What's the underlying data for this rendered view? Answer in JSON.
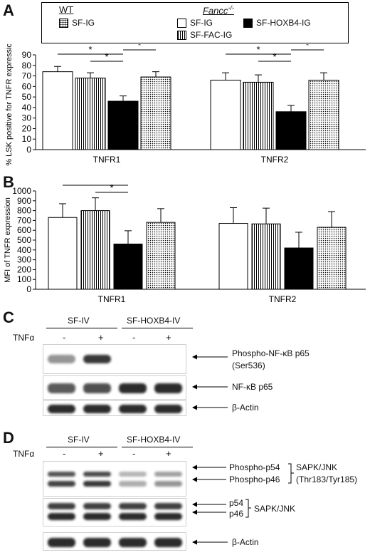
{
  "panels": {
    "a": "A",
    "b": "B",
    "c": "C",
    "d": "D"
  },
  "legend": {
    "wt_title": "WT",
    "fancc_title": "Fancc",
    "fancc_superscript": "-/-",
    "items": {
      "wt_sfig": "SF-IG",
      "sfig": "SF-IG",
      "sfhoxb4": "SF-HOXB4-IG",
      "sffac": "SF-FAC-IG"
    }
  },
  "colors": {
    "empty": "#ffffff",
    "hoxb4": "#000000",
    "stroke": "#000000"
  },
  "chart_data": [
    {
      "type": "bar",
      "panel": "A",
      "ylabel": "% LSK positive for TNFR expression",
      "ylim": [
        0,
        90
      ],
      "yticks": [
        0,
        10,
        20,
        30,
        40,
        50,
        60,
        70,
        80,
        90
      ],
      "categories": [
        "TNFR1",
        "TNFR2"
      ],
      "series": [
        {
          "name": "SF-IG",
          "group": "Fancc-/-",
          "pattern": "white",
          "values": [
            74,
            66
          ],
          "errors": [
            5,
            7
          ]
        },
        {
          "name": "SF-FAC-IG",
          "group": "Fancc-/-",
          "pattern": "vertical",
          "values": [
            68,
            64
          ],
          "errors": [
            5,
            7
          ]
        },
        {
          "name": "SF-HOXB4-IG",
          "group": "Fancc-/-",
          "pattern": "black",
          "values": [
            46,
            36
          ],
          "errors": [
            5,
            6
          ]
        },
        {
          "name": "SF-IG",
          "group": "WT",
          "pattern": "dots",
          "values": [
            69,
            66
          ],
          "errors": [
            5,
            7
          ]
        }
      ],
      "significance": [
        {
          "category": 0,
          "from": 0,
          "to": 2,
          "label": "*"
        },
        {
          "category": 0,
          "from": 1,
          "to": 2,
          "label": "*"
        },
        {
          "category": 0,
          "from": 2,
          "to": 3,
          "label": "*"
        },
        {
          "category": 1,
          "from": 0,
          "to": 2,
          "label": "*"
        },
        {
          "category": 1,
          "from": 1,
          "to": 2,
          "label": "*"
        },
        {
          "category": 1,
          "from": 2,
          "to": 3,
          "label": "*"
        }
      ]
    },
    {
      "type": "bar",
      "panel": "B",
      "ylabel": "MFI of TNFR expression",
      "ylim": [
        0,
        1000
      ],
      "yticks": [
        0,
        100,
        200,
        300,
        400,
        500,
        600,
        700,
        800,
        900,
        1000
      ],
      "categories": [
        "TNFR1",
        "TNFR2"
      ],
      "series": [
        {
          "name": "SF-IG",
          "group": "Fancc-/-",
          "pattern": "white",
          "values": [
            730,
            670
          ],
          "errors": [
            140,
            160
          ]
        },
        {
          "name": "SF-FAC-IG",
          "group": "Fancc-/-",
          "pattern": "vertical",
          "values": [
            800,
            665
          ],
          "errors": [
            130,
            160
          ]
        },
        {
          "name": "SF-HOXB4-IG",
          "group": "Fancc-/-",
          "pattern": "black",
          "values": [
            460,
            420
          ],
          "errors": [
            135,
            160
          ]
        },
        {
          "name": "SF-IG",
          "group": "WT",
          "pattern": "dots",
          "values": [
            680,
            630
          ],
          "errors": [
            140,
            160
          ]
        }
      ],
      "significance": [
        {
          "category": 0,
          "from": 0,
          "to": 2,
          "label": "*"
        },
        {
          "category": 0,
          "from": 1,
          "to": 2,
          "label": "*"
        }
      ]
    }
  ],
  "blot_c": {
    "groups": [
      "SF-IV",
      "SF-HOXB4-IV"
    ],
    "treatment_label": "TNFα",
    "lane_signs": [
      "-",
      "+",
      "-",
      "+"
    ],
    "rows": [
      {
        "label": "Phospho-NF-κB p65",
        "label2": "(Ser536)",
        "intensity": [
          0.45,
          0.85,
          0,
          0
        ]
      },
      {
        "label": "NF-κB p65",
        "label2": "",
        "intensity": [
          0.7,
          0.75,
          0.9,
          0.9
        ]
      },
      {
        "label": "β-Actin",
        "label2": "",
        "intensity": [
          0.9,
          0.9,
          0.9,
          0.9
        ]
      }
    ]
  },
  "blot_d": {
    "groups": [
      "SF-IV",
      "SF-HOXB4-IV"
    ],
    "treatment_label": "TNFα",
    "lane_signs": [
      "-",
      "+",
      "-",
      "+"
    ],
    "phospho_labels": [
      "Phospho-p54",
      "Phospho-p46"
    ],
    "phospho_bracket_label": "SAPK/JNK",
    "phospho_sites": "(Thr183/Tyr185)",
    "total_labels": [
      "p54",
      "p46"
    ],
    "total_bracket_label": "SAPK/JNK",
    "actin_label": "β-Actin",
    "phospho_intensity": [
      0.8,
      0.85,
      0.35,
      0.45
    ],
    "total_intensity": [
      0.9,
      0.9,
      0.9,
      0.9
    ],
    "actin_intensity": [
      0.9,
      0.9,
      0.9,
      0.9
    ]
  }
}
